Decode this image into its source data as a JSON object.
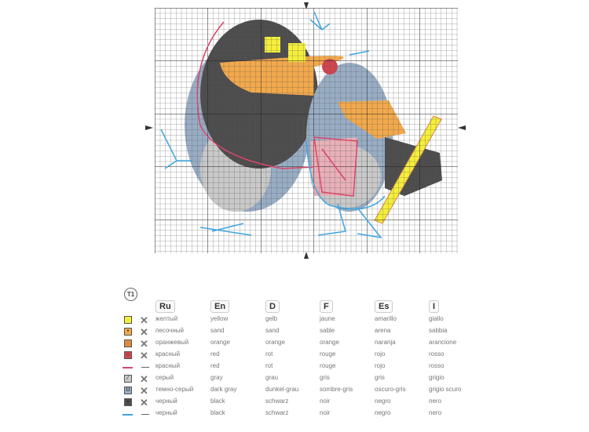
{
  "pattern": {
    "colors": {
      "yellow": "#f4ef3a",
      "sand": "#f2a94c",
      "orange": "#de8a45",
      "red": "#d2454f",
      "red_line": "#d9466a",
      "gray": "#c9c9c9",
      "dark_gray": "#98adc4",
      "black": "#4d4d4d",
      "black_line": "#3fa4e0"
    }
  },
  "legend": {
    "table_label": "T1",
    "headers": [
      "Ru",
      "En",
      "D",
      "F",
      "Es",
      "I"
    ],
    "rows": [
      {
        "swatch": "#f4ef3a",
        "symbol": "",
        "stitch": "cross",
        "names": [
          "желтый",
          "yellow",
          "gelb",
          "jaune",
          "amarillo",
          "giallo"
        ]
      },
      {
        "swatch": "#f2a94c",
        "symbol": "•",
        "stitch": "cross",
        "names": [
          "песочный",
          "sand",
          "sand",
          "sable",
          "arena",
          "sabbia"
        ]
      },
      {
        "swatch": "#de8a45",
        "symbol": "",
        "stitch": "cross",
        "names": [
          "оранжевый",
          "orange",
          "orange",
          "orange",
          "naranja",
          "arancione"
        ]
      },
      {
        "swatch": "#d2454f",
        "symbol": "○",
        "stitch": "cross",
        "names": [
          "красный",
          "red",
          "rot",
          "rouge",
          "rojo",
          "rosso"
        ]
      },
      {
        "swatch": "#d9466a",
        "symbol": "",
        "stitch": "backstitch",
        "names": [
          "красный",
          "red",
          "rot",
          "rouge",
          "rojo",
          "rosso"
        ]
      },
      {
        "swatch": "#c9c9c9",
        "symbol": "⁄",
        "stitch": "cross",
        "names": [
          "серый",
          "gray",
          "grau",
          "gris",
          "gris",
          "grigio"
        ]
      },
      {
        "swatch": "#98adc4",
        "symbol": "U",
        "stitch": "cross",
        "names": [
          "темно-серый",
          "dark gray",
          "dunkel-grau",
          "sombre-gris",
          "oscuro-gris",
          "grigio scuro"
        ]
      },
      {
        "swatch": "#4d4d4d",
        "symbol": "▪",
        "stitch": "cross",
        "names": [
          "черный",
          "black",
          "schwarz",
          "noir",
          "negro",
          "nero"
        ]
      },
      {
        "swatch": "#3fa4e0",
        "symbol": "",
        "stitch": "backstitch",
        "names": [
          "черный",
          "black",
          "schwarz",
          "noir",
          "negro",
          "nero"
        ]
      }
    ]
  }
}
